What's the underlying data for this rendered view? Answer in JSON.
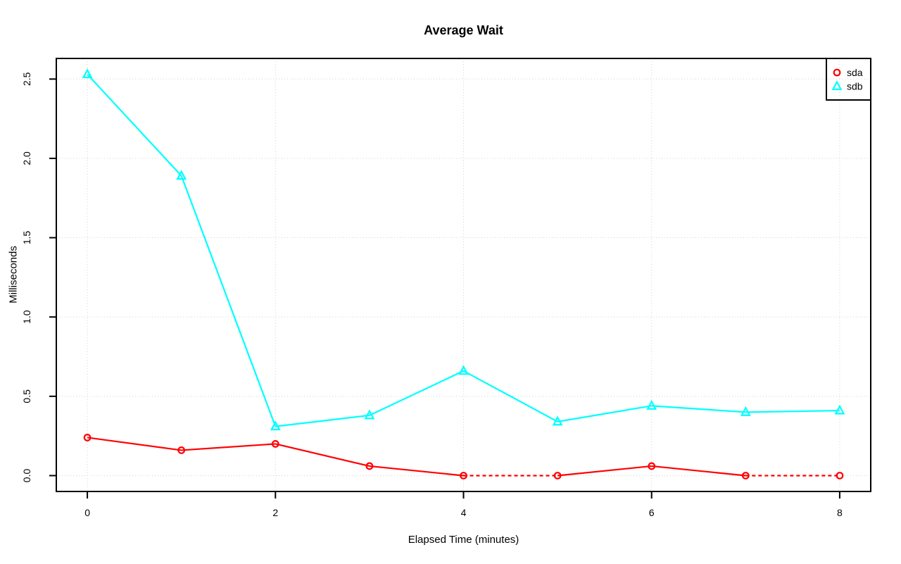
{
  "chart_data": {
    "type": "line",
    "title": "Average Wait",
    "xlabel": "Elapsed Time (minutes)",
    "ylabel": "Milliseconds",
    "x": [
      0,
      1,
      2,
      3,
      4,
      5,
      6,
      7,
      8
    ],
    "series": [
      {
        "name": "sda",
        "color": "#FF0000",
        "marker": "circle",
        "values": [
          0.24,
          0.16,
          0.2,
          0.06,
          0.0,
          0.0,
          0.06,
          0.0,
          0.0
        ]
      },
      {
        "name": "sdb",
        "color": "#00FFFF",
        "marker": "triangle",
        "values": [
          2.53,
          1.89,
          0.31,
          0.38,
          0.66,
          0.34,
          0.44,
          0.4,
          0.41
        ]
      }
    ],
    "xticks": [
      0,
      2,
      4,
      6,
      8
    ],
    "xtick_labels": [
      "0",
      "2",
      "4",
      "6",
      "8"
    ],
    "yticks": [
      0.0,
      0.5,
      1.0,
      1.5,
      2.0,
      2.5
    ],
    "ytick_labels": [
      "0.0",
      "0.5",
      "1.0",
      "1.5",
      "2.0",
      "2.5"
    ],
    "xlim": [
      -0.33,
      8.33
    ],
    "ylim": [
      -0.1,
      2.63
    ],
    "grid": "dotted",
    "grid_color": "#D3D3D3",
    "axis_color": "#000000",
    "background_color": "#FFFFFF",
    "legend": {
      "position": "top-right",
      "entries": [
        "sda",
        "sdb"
      ]
    }
  }
}
